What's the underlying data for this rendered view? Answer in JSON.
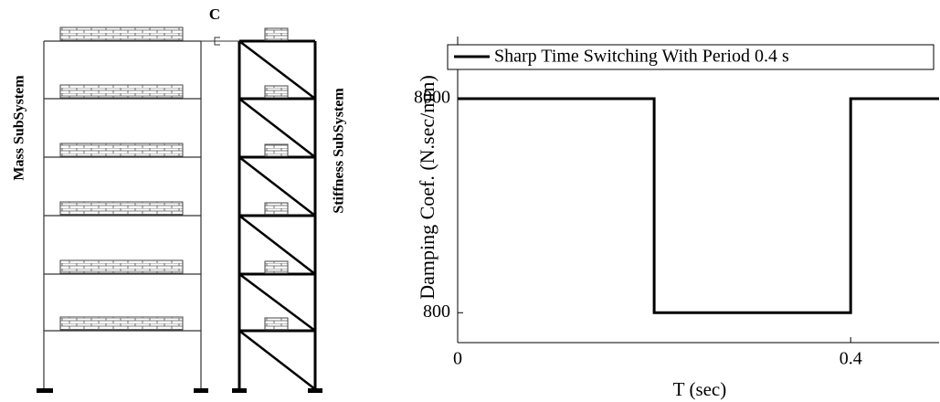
{
  "diagram": {
    "damper_label": "C",
    "left_label": "Mass SubSystem",
    "right_label": "Stiffness SubSystem"
  },
  "chart_data": {
    "type": "line",
    "xlabel": "T (sec)",
    "ylabel": "Damping Coef. (N.sec/mm)",
    "x": [
      0,
      0.2,
      0.2,
      0.4,
      0.4,
      0.49
    ],
    "series": [
      {
        "name": "Sharp Time Switching With Period 0.4 s",
        "color": "#000000",
        "values": [
          8000,
          8000,
          800,
          800,
          8000,
          8000
        ]
      }
    ],
    "xlim": [
      0,
      0.49
    ],
    "xticks": [
      0,
      0.4
    ],
    "ylim": [
      580,
      15600
    ],
    "yticks": [
      800,
      8000
    ],
    "yscale": "log",
    "legend": "top-right"
  }
}
